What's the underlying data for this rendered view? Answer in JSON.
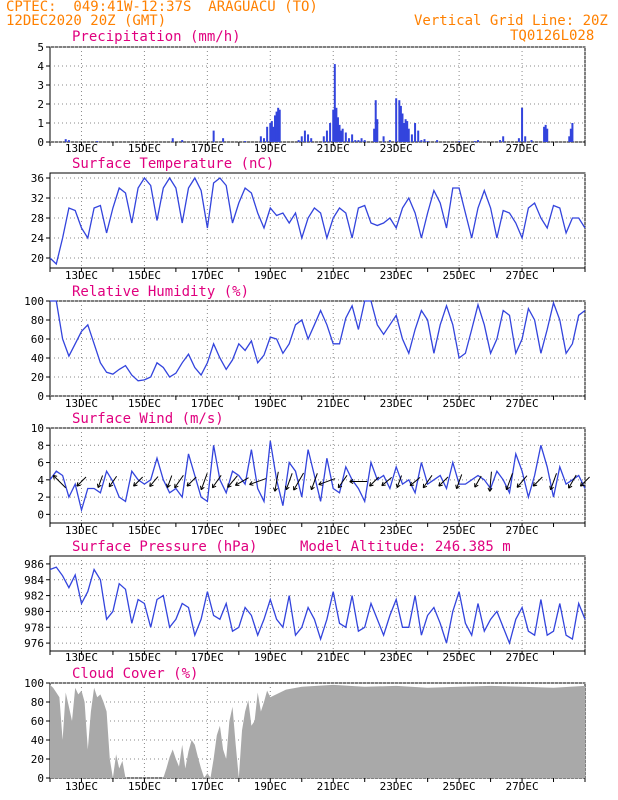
{
  "header": {
    "line1": "CPTEC:  049:41W-12:37S  ARAGUACU (TO)",
    "line2": "12DEC2020 20Z (GMT)",
    "grid_note": "Vertical Grid Line: 20Z",
    "run_code": "TQ0126L028",
    "model_altitude": "Model Altitude: 246.385 m",
    "header_color": "#ff8000",
    "title_color": "#e0007f",
    "line_color": "#3344dd",
    "cloud_color": "#a9a9a9"
  },
  "date_labels": [
    "13DEC",
    "15DEC",
    "17DEC",
    "19DEC",
    "21DEC",
    "23DEC",
    "25DEC",
    "27DEC"
  ],
  "chart_data": [
    {
      "type": "bar",
      "title": "Precipitation (mm/h)",
      "ylim": [
        0,
        5
      ],
      "yticks": [
        0,
        1,
        2,
        3,
        4,
        5
      ],
      "x_days": [
        0.5,
        0.6,
        1.5,
        3.9,
        4.2,
        5.2,
        5.5,
        6.2,
        6.7,
        6.8,
        6.9,
        7.0,
        7.05,
        7.1,
        7.15,
        7.2,
        7.25,
        7.3,
        7.9,
        8.0,
        8.1,
        8.2,
        8.3,
        8.7,
        8.8,
        8.9,
        9.0,
        9.05,
        9.1,
        9.15,
        9.2,
        9.25,
        9.3,
        9.4,
        9.5,
        9.6,
        9.7,
        9.8,
        9.9,
        10.0,
        10.3,
        10.35,
        10.4,
        10.6,
        10.8,
        11.0,
        11.1,
        11.15,
        11.2,
        11.25,
        11.3,
        11.35,
        11.4,
        11.5,
        11.6,
        11.7,
        11.8,
        11.9,
        12.0,
        12.3,
        13.0,
        13.5,
        13.6,
        14.3,
        14.4,
        14.9,
        15.0,
        15.1,
        15.3,
        15.7,
        15.75,
        15.8,
        16.5,
        16.55,
        16.6
      ],
      "values": [
        0.15,
        0.1,
        0.05,
        0.2,
        0.1,
        0.6,
        0.2,
        0.05,
        0.3,
        0.2,
        0.8,
        1.0,
        1.1,
        0.8,
        1.4,
        1.6,
        1.8,
        1.7,
        0.1,
        0.3,
        0.6,
        0.4,
        0.2,
        0.3,
        0.6,
        1.0,
        1.7,
        4.1,
        1.8,
        1.3,
        0.9,
        0.6,
        0.7,
        0.5,
        0.2,
        0.4,
        0.1,
        0.1,
        0.2,
        0.1,
        0.7,
        2.2,
        1.2,
        0.3,
        0.1,
        2.3,
        2.2,
        1.9,
        1.5,
        1.0,
        1.2,
        1.1,
        0.7,
        0.4,
        1.0,
        0.6,
        0.1,
        0.15,
        0.05,
        0.1,
        0.05,
        0.05,
        0.1,
        0.1,
        0.3,
        0.2,
        1.8,
        0.3,
        0.1,
        0.8,
        0.9,
        0.7,
        0.3,
        0.7,
        1.0
      ]
    },
    {
      "type": "line",
      "title": "Surface Temperature (nC)",
      "ylim": [
        18,
        37
      ],
      "yticks": [
        20,
        24,
        28,
        32,
        36
      ],
      "x_days": [
        0,
        0.2,
        0.4,
        0.6,
        0.8,
        1.0,
        1.2,
        1.4,
        1.6,
        1.8,
        2.0,
        2.2,
        2.4,
        2.6,
        2.8,
        3.0,
        3.2,
        3.4,
        3.6,
        3.8,
        4.0,
        4.2,
        4.4,
        4.6,
        4.8,
        5.0,
        5.2,
        5.4,
        5.6,
        5.8,
        6.0,
        6.2,
        6.4,
        6.6,
        6.8,
        7.0,
        7.2,
        7.4,
        7.6,
        7.8,
        8.0,
        8.2,
        8.4,
        8.6,
        8.8,
        9.0,
        9.2,
        9.4,
        9.6,
        9.8,
        10.0,
        10.2,
        10.4,
        10.6,
        10.8,
        11.0,
        11.2,
        11.4,
        11.6,
        11.8,
        12.0,
        12.2,
        12.4,
        12.6,
        12.8,
        13.0,
        13.2,
        13.4,
        13.6,
        13.8,
        14.0,
        14.2,
        14.4,
        14.6,
        14.8,
        15.0,
        15.2,
        15.4,
        15.6,
        15.8,
        16.0,
        16.2,
        16.4,
        16.6,
        16.8,
        17.0
      ],
      "values": [
        20.0,
        18.8,
        24.0,
        30.0,
        29.5,
        26.0,
        24.0,
        30.0,
        30.5,
        25.0,
        30.0,
        34.0,
        33.0,
        27.0,
        34.0,
        36.0,
        34.5,
        27.5,
        34.0,
        36.0,
        34.0,
        27.0,
        34.0,
        36.0,
        33.5,
        26.0,
        35.0,
        36.0,
        34.5,
        27.0,
        31.0,
        34.0,
        33.0,
        29.0,
        26.0,
        30.0,
        28.5,
        29.0,
        27.0,
        29.0,
        24.0,
        28.0,
        30.0,
        29.0,
        24.0,
        28.0,
        30.0,
        29.0,
        24.0,
        30.0,
        30.5,
        27.0,
        26.5,
        27.0,
        28.0,
        26.0,
        30.0,
        32.0,
        29.0,
        24.0,
        29.0,
        33.5,
        31.0,
        26.0,
        34.0,
        34.0,
        29.0,
        24.0,
        30.0,
        33.5,
        30.0,
        24.0,
        29.5,
        29.0,
        27.0,
        24.0,
        30.0,
        31.0,
        28.0,
        26.0,
        30.5,
        30.0,
        25.0,
        28.0,
        28.0,
        26.0
      ]
    },
    {
      "type": "line",
      "title": "Relative Humidity (%)",
      "ylim": [
        0,
        100
      ],
      "yticks": [
        0,
        20,
        40,
        60,
        80,
        100
      ],
      "x_days": [
        0,
        0.2,
        0.4,
        0.6,
        0.8,
        1.0,
        1.2,
        1.4,
        1.6,
        1.8,
        2.0,
        2.2,
        2.4,
        2.6,
        2.8,
        3.0,
        3.2,
        3.4,
        3.6,
        3.8,
        4.0,
        4.2,
        4.4,
        4.6,
        4.8,
        5.0,
        5.2,
        5.4,
        5.6,
        5.8,
        6.0,
        6.2,
        6.4,
        6.6,
        6.8,
        7.0,
        7.2,
        7.4,
        7.6,
        7.8,
        8.0,
        8.2,
        8.4,
        8.6,
        8.8,
        9.0,
        9.2,
        9.4,
        9.6,
        9.8,
        10.0,
        10.2,
        10.4,
        10.6,
        10.8,
        11.0,
        11.2,
        11.4,
        11.6,
        11.8,
        12.0,
        12.2,
        12.4,
        12.6,
        12.8,
        13.0,
        13.2,
        13.4,
        13.6,
        13.8,
        14.0,
        14.2,
        14.4,
        14.6,
        14.8,
        15.0,
        15.2,
        15.4,
        15.6,
        15.8,
        16.0,
        16.2,
        16.4,
        16.6,
        16.8,
        17.0
      ],
      "values": [
        100,
        100,
        60,
        42,
        55,
        68,
        75,
        55,
        35,
        25,
        23,
        28,
        32,
        22,
        16,
        17,
        20,
        35,
        30,
        20,
        24,
        35,
        44,
        30,
        22,
        35,
        55,
        40,
        28,
        38,
        55,
        48,
        58,
        35,
        43,
        62,
        60,
        45,
        55,
        75,
        80,
        60,
        75,
        90,
        75,
        55,
        55,
        82,
        95,
        70,
        100,
        100,
        75,
        65,
        75,
        85,
        60,
        45,
        70,
        90,
        80,
        45,
        75,
        95,
        75,
        40,
        45,
        70,
        96,
        75,
        45,
        60,
        90,
        85,
        45,
        60,
        92,
        80,
        45,
        70,
        98,
        80,
        45,
        55,
        85,
        90
      ]
    },
    {
      "type": "line",
      "title": "Surface Wind (m/s)",
      "ylim": [
        -1,
        10
      ],
      "yticks": [
        0,
        2,
        4,
        6,
        8,
        10
      ],
      "x_days": [
        0,
        0.2,
        0.4,
        0.6,
        0.8,
        1.0,
        1.2,
        1.4,
        1.6,
        1.8,
        2.0,
        2.2,
        2.4,
        2.6,
        2.8,
        3.0,
        3.2,
        3.4,
        3.6,
        3.8,
        4.0,
        4.2,
        4.4,
        4.6,
        4.8,
        5.0,
        5.2,
        5.4,
        5.6,
        5.8,
        6.0,
        6.2,
        6.4,
        6.6,
        6.8,
        7.0,
        7.2,
        7.4,
        7.6,
        7.8,
        8.0,
        8.2,
        8.4,
        8.6,
        8.8,
        9.0,
        9.2,
        9.4,
        9.6,
        9.8,
        10.0,
        10.2,
        10.4,
        10.6,
        10.8,
        11.0,
        11.2,
        11.4,
        11.6,
        11.8,
        12.0,
        12.2,
        12.4,
        12.6,
        12.8,
        13.0,
        13.2,
        13.4,
        13.6,
        13.8,
        14.0,
        14.2,
        14.4,
        14.6,
        14.8,
        15.0,
        15.2,
        15.4,
        15.6,
        15.8,
        16.0,
        16.2,
        16.4,
        16.6,
        16.8,
        17.0
      ],
      "values": [
        4.0,
        5.0,
        4.5,
        2.0,
        3.5,
        0.5,
        3.0,
        3.0,
        2.5,
        5.0,
        3.8,
        2.0,
        1.5,
        5.0,
        4.0,
        3.5,
        4.0,
        6.5,
        4.0,
        2.5,
        3.0,
        2.0,
        7.0,
        4.5,
        2.0,
        1.5,
        8.0,
        4.0,
        2.5,
        5.0,
        4.5,
        3.5,
        7.5,
        3.0,
        1.5,
        8.5,
        4.0,
        1.0,
        6.0,
        5.0,
        2.0,
        7.5,
        4.5,
        1.5,
        6.5,
        3.0,
        2.5,
        5.5,
        4.0,
        3.0,
        1.5,
        6.0,
        4.0,
        4.5,
        3.0,
        5.5,
        3.5,
        4.0,
        2.5,
        6.0,
        3.5,
        4.0,
        4.5,
        3.0,
        6.0,
        3.5,
        3.5,
        4.0,
        4.5,
        4.0,
        3.0,
        5.0,
        4.0,
        2.5,
        7.0,
        5.0,
        2.0,
        4.5,
        8.0,
        5.5,
        2.0,
        5.5,
        3.5,
        4.0,
        4.5,
        3.0
      ],
      "arrows": [
        {
          "day": 0.3,
          "dir": 315,
          "speed": 5
        },
        {
          "day": 1.0,
          "dir": 225,
          "speed": 3
        },
        {
          "day": 1.6,
          "dir": 200,
          "speed": 3
        },
        {
          "day": 2.0,
          "dir": 215,
          "speed": 3
        },
        {
          "day": 2.8,
          "dir": 225,
          "speed": 3
        },
        {
          "day": 3.3,
          "dir": 220,
          "speed": 3
        },
        {
          "day": 3.8,
          "dir": 200,
          "speed": 3
        },
        {
          "day": 4.1,
          "dir": 215,
          "speed": 4
        },
        {
          "day": 4.5,
          "dir": 225,
          "speed": 3
        },
        {
          "day": 4.9,
          "dir": 200,
          "speed": 5
        },
        {
          "day": 5.3,
          "dir": 215,
          "speed": 4
        },
        {
          "day": 5.8,
          "dir": 220,
          "speed": 4
        },
        {
          "day": 6.1,
          "dir": 240,
          "speed": 4
        },
        {
          "day": 6.6,
          "dir": 250,
          "speed": 5
        },
        {
          "day": 7.2,
          "dir": 190,
          "speed": 6
        },
        {
          "day": 7.6,
          "dir": 200,
          "speed": 5
        },
        {
          "day": 7.9,
          "dir": 210,
          "speed": 6
        },
        {
          "day": 8.4,
          "dir": 200,
          "speed": 5
        },
        {
          "day": 8.8,
          "dir": 250,
          "speed": 5
        },
        {
          "day": 9.3,
          "dir": 215,
          "speed": 4
        },
        {
          "day": 9.8,
          "dir": 270,
          "speed": 5
        },
        {
          "day": 10.3,
          "dir": 225,
          "speed": 3
        },
        {
          "day": 10.7,
          "dir": 230,
          "speed": 3
        },
        {
          "day": 11.1,
          "dir": 200,
          "speed": 3
        },
        {
          "day": 11.6,
          "dir": 230,
          "speed": 3
        },
        {
          "day": 12.0,
          "dir": 215,
          "speed": 4
        },
        {
          "day": 12.5,
          "dir": 225,
          "speed": 3
        },
        {
          "day": 13.0,
          "dir": 200,
          "speed": 4
        },
        {
          "day": 13.6,
          "dir": 210,
          "speed": 3
        },
        {
          "day": 14.0,
          "dir": 185,
          "speed": 6
        },
        {
          "day": 14.6,
          "dir": 200,
          "speed": 5
        },
        {
          "day": 15.0,
          "dir": 220,
          "speed": 4
        },
        {
          "day": 15.5,
          "dir": 225,
          "speed": 3
        },
        {
          "day": 16.0,
          "dir": 200,
          "speed": 5
        },
        {
          "day": 16.6,
          "dir": 210,
          "speed": 4
        },
        {
          "day": 17.0,
          "dir": 225,
          "speed": 3
        }
      ]
    },
    {
      "type": "line",
      "title": "Surface Pressure (hPa)",
      "ylim": [
        975,
        987
      ],
      "yticks": [
        976,
        978,
        980,
        982,
        984,
        986
      ],
      "x_days": [
        0,
        0.2,
        0.4,
        0.6,
        0.8,
        1.0,
        1.2,
        1.4,
        1.6,
        1.8,
        2.0,
        2.2,
        2.4,
        2.6,
        2.8,
        3.0,
        3.2,
        3.4,
        3.6,
        3.8,
        4.0,
        4.2,
        4.4,
        4.6,
        4.8,
        5.0,
        5.2,
        5.4,
        5.6,
        5.8,
        6.0,
        6.2,
        6.4,
        6.6,
        6.8,
        7.0,
        7.2,
        7.4,
        7.6,
        7.8,
        8.0,
        8.2,
        8.4,
        8.6,
        8.8,
        9.0,
        9.2,
        9.4,
        9.6,
        9.8,
        10.0,
        10.2,
        10.4,
        10.6,
        10.8,
        11.0,
        11.2,
        11.4,
        11.6,
        11.8,
        12.0,
        12.2,
        12.4,
        12.6,
        12.8,
        13.0,
        13.2,
        13.4,
        13.6,
        13.8,
        14.0,
        14.2,
        14.4,
        14.6,
        14.8,
        15.0,
        15.2,
        15.4,
        15.6,
        15.8,
        16.0,
        16.2,
        16.4,
        16.6,
        16.8,
        17.0
      ],
      "values": [
        985.3,
        985.6,
        984.5,
        983.0,
        984.6,
        981.0,
        982.5,
        985.3,
        984.0,
        979.0,
        980.0,
        983.5,
        982.8,
        978.5,
        981.5,
        981.0,
        978.0,
        981.5,
        982.0,
        978.0,
        979.0,
        981.0,
        980.5,
        977.0,
        979.0,
        982.5,
        979.5,
        979.0,
        981.0,
        977.5,
        978.0,
        980.5,
        979.5,
        977.0,
        979.0,
        981.5,
        979.0,
        978.0,
        982.0,
        977.0,
        978.0,
        980.5,
        979.0,
        976.5,
        979.0,
        982.5,
        978.5,
        978.0,
        982.0,
        977.5,
        978.0,
        981.0,
        979.0,
        977.0,
        979.5,
        981.5,
        978.0,
        978.0,
        982.0,
        977.0,
        979.5,
        980.5,
        978.5,
        976.0,
        980.0,
        982.5,
        978.5,
        977.0,
        981.0,
        977.5,
        979.0,
        980.0,
        978.0,
        976.0,
        979.0,
        980.5,
        977.5,
        977.0,
        981.5,
        977.0,
        977.5,
        981.0,
        977.0,
        976.5,
        981.0,
        979.0
      ]
    },
    {
      "type": "area",
      "title": "Cloud Cover (%)",
      "ylim": [
        0,
        100
      ],
      "yticks": [
        0,
        20,
        40,
        60,
        80,
        100
      ],
      "x_days": [
        0,
        0.1,
        0.2,
        0.3,
        0.4,
        0.5,
        0.6,
        0.7,
        0.8,
        0.9,
        1.0,
        1.1,
        1.2,
        1.3,
        1.4,
        1.5,
        1.6,
        1.7,
        1.8,
        1.9,
        2.0,
        2.1,
        2.2,
        2.3,
        2.4,
        2.5,
        2.6,
        2.7,
        2.8,
        2.9,
        3.0,
        3.1,
        3.2,
        3.3,
        3.4,
        3.5,
        3.6,
        3.7,
        3.8,
        3.9,
        4.0,
        4.1,
        4.2,
        4.3,
        4.4,
        4.5,
        4.6,
        4.7,
        4.8,
        4.9,
        5.0,
        5.1,
        5.2,
        5.3,
        5.4,
        5.5,
        5.6,
        5.7,
        5.8,
        5.9,
        6.0,
        6.1,
        6.2,
        6.3,
        6.4,
        6.5,
        6.6,
        6.7,
        6.8,
        6.9,
        7.0,
        7.5,
        8.0,
        9.0,
        10.0,
        11.0,
        12.0,
        13.0,
        14.0,
        15.0,
        16.0,
        17.0
      ],
      "values": [
        98,
        95,
        90,
        85,
        40,
        90,
        75,
        60,
        95,
        88,
        92,
        80,
        30,
        70,
        95,
        85,
        88,
        80,
        70,
        20,
        0,
        25,
        10,
        18,
        0,
        0,
        0,
        0,
        0,
        0,
        0,
        0,
        0,
        0,
        0,
        0,
        0,
        10,
        22,
        30,
        20,
        12,
        35,
        10,
        28,
        40,
        35,
        22,
        10,
        0,
        5,
        0,
        20,
        45,
        55,
        30,
        20,
        60,
        75,
        35,
        0,
        50,
        70,
        82,
        55,
        60,
        90,
        70,
        80,
        92,
        85,
        93,
        96,
        98,
        96,
        97,
        95,
        96,
        97,
        96,
        95,
        97
      ]
    }
  ]
}
